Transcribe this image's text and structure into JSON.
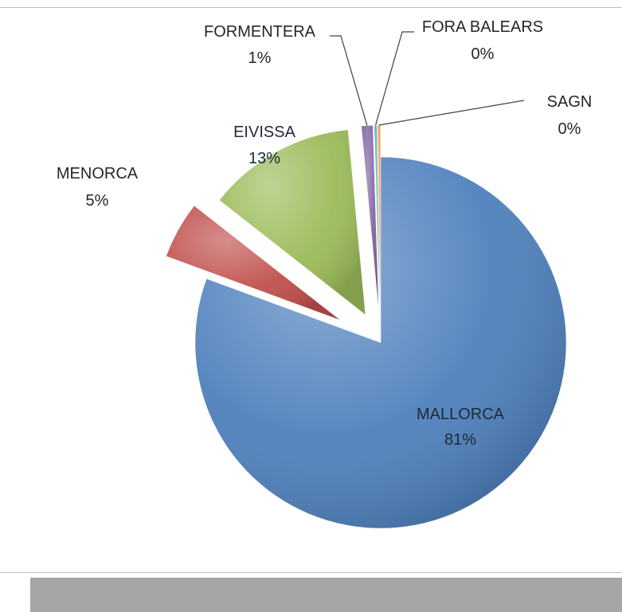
{
  "chart_data": {
    "type": "pie",
    "exploded": true,
    "slices": [
      {
        "label": "MALLORCA",
        "value": 81,
        "pct_label": "81%",
        "color": "#4f81bd"
      },
      {
        "label": "MENORCA",
        "value": 5,
        "pct_label": "5%",
        "color": "#c0504d"
      },
      {
        "label": "EIVISSA",
        "value": 13,
        "pct_label": "13%",
        "color": "#9bbb59"
      },
      {
        "label": "FORMENTERA",
        "value": 1,
        "pct_label": "1%",
        "color": "#8064a2"
      },
      {
        "label": "FORA BALEARS",
        "value": 0.25,
        "pct_label": "0%",
        "color": "#4bacc6"
      },
      {
        "label": "SAGN",
        "value": 0.25,
        "pct_label": "0%",
        "color": "#f79646"
      }
    ],
    "legend": "none"
  }
}
